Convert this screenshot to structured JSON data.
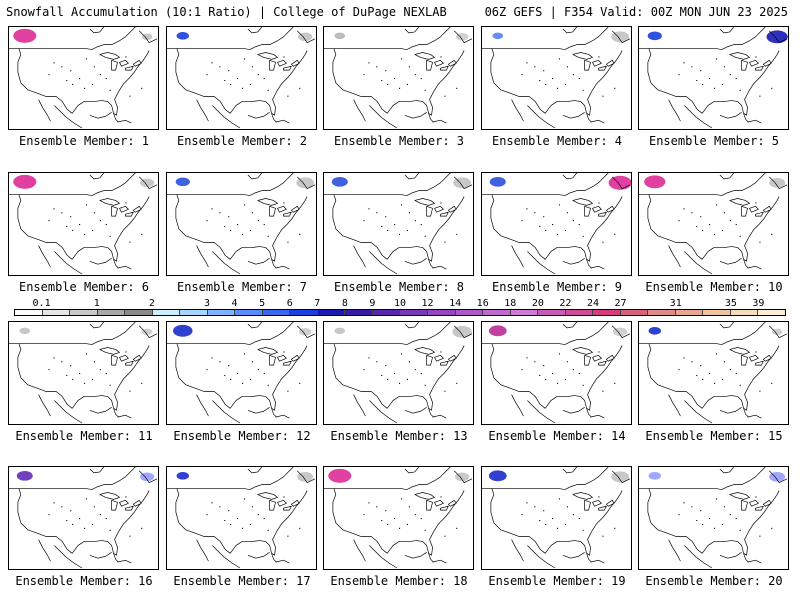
{
  "header": {
    "left": "Snowfall Accumulation (10:1 Ratio) | College of DuPage NEXLAB",
    "right": "06Z GEFS | F354 Valid: 00Z MON JUN 23 2025"
  },
  "panels": [
    {
      "caption": "Ensemble Member: 1",
      "snow": [
        {
          "region": "nw",
          "colors": [
            "#e040a0",
            "#6050d0",
            "#9fa7ff"
          ],
          "intensity": 1.0
        },
        {
          "region": "ne",
          "colors": [
            "#c8c8c8"
          ],
          "intensity": 0.3
        }
      ]
    },
    {
      "caption": "Ensemble Member: 2",
      "snow": [
        {
          "region": "nw",
          "colors": [
            "#3050e0",
            "#9fb0ff"
          ],
          "intensity": 0.4
        },
        {
          "region": "ne",
          "colors": [
            "#c8c8c8"
          ],
          "intensity": 0.5
        }
      ]
    },
    {
      "caption": "Ensemble Member: 3",
      "snow": [
        {
          "region": "nw",
          "colors": [
            "#bcbcbc"
          ],
          "intensity": 0.3
        },
        {
          "region": "ne",
          "colors": [
            "#d0d0d0"
          ],
          "intensity": 0.4
        }
      ]
    },
    {
      "caption": "Ensemble Member: 4",
      "snow": [
        {
          "region": "nw",
          "colors": [
            "#6a8bff"
          ],
          "intensity": 0.3
        },
        {
          "region": "ne",
          "colors": [
            "#c8c8c8"
          ],
          "intensity": 0.7
        }
      ]
    },
    {
      "caption": "Ensemble Member: 5",
      "snow": [
        {
          "region": "nw",
          "colors": [
            "#3050e0",
            "#c8c8c8"
          ],
          "intensity": 0.5
        },
        {
          "region": "ne",
          "colors": [
            "#3030c0",
            "#9fa7ff",
            "#c8c8c8"
          ],
          "intensity": 0.9
        }
      ]
    },
    {
      "caption": "Ensemble Member: 6",
      "snow": [
        {
          "region": "nw",
          "colors": [
            "#e040a0",
            "#6050d0",
            "#9fa7ff"
          ],
          "intensity": 1.0
        },
        {
          "region": "ne",
          "colors": [
            "#c8c8c8"
          ],
          "intensity": 0.5
        }
      ]
    },
    {
      "caption": "Ensemble Member: 7",
      "snow": [
        {
          "region": "nw",
          "colors": [
            "#4060e0",
            "#b0b0b0"
          ],
          "intensity": 0.5
        },
        {
          "region": "ne",
          "colors": [
            "#c8c8c8"
          ],
          "intensity": 0.7
        }
      ]
    },
    {
      "caption": "Ensemble Member: 8",
      "snow": [
        {
          "region": "nw",
          "colors": [
            "#4060e0",
            "#c8c8c8"
          ],
          "intensity": 0.6
        },
        {
          "region": "ne",
          "colors": [
            "#c8c8c8"
          ],
          "intensity": 0.7
        }
      ]
    },
    {
      "caption": "Ensemble Member: 9",
      "snow": [
        {
          "region": "nw",
          "colors": [
            "#4060e0",
            "#c8c8c8"
          ],
          "intensity": 0.6
        },
        {
          "region": "ne",
          "colors": [
            "#e040a0",
            "#6050d0",
            "#9fa7ff",
            "#c8c8c8"
          ],
          "intensity": 1.0
        }
      ]
    },
    {
      "caption": "Ensemble Member: 10",
      "snow": [
        {
          "region": "nw",
          "colors": [
            "#e040a0",
            "#6050d0",
            "#9fa7ff"
          ],
          "intensity": 0.9
        },
        {
          "region": "ne",
          "colors": [
            "#c8c8c8"
          ],
          "intensity": 0.6
        }
      ]
    },
    {
      "caption": "Ensemble Member: 11",
      "snow": [
        {
          "region": "nw",
          "colors": [
            "#c8c8c8"
          ],
          "intensity": 0.3
        },
        {
          "region": "ne",
          "colors": [
            "#d0d0d0"
          ],
          "intensity": 0.3
        }
      ]
    },
    {
      "caption": "Ensemble Member: 12",
      "snow": [
        {
          "region": "nw",
          "colors": [
            "#3040d0",
            "#9fa7ff"
          ],
          "intensity": 0.8
        },
        {
          "region": "ne",
          "colors": [
            "#d0d0d0"
          ],
          "intensity": 0.4
        }
      ]
    },
    {
      "caption": "Ensemble Member: 13",
      "snow": [
        {
          "region": "nw",
          "colors": [
            "#c8c8c8"
          ],
          "intensity": 0.3
        },
        {
          "region": "ne",
          "colors": [
            "#c8c8c8"
          ],
          "intensity": 0.8
        }
      ]
    },
    {
      "caption": "Ensemble Member: 14",
      "snow": [
        {
          "region": "nw",
          "colors": [
            "#c040a0",
            "#6050d0"
          ],
          "intensity": 0.7
        },
        {
          "region": "ne",
          "colors": [
            "#d0d0d0"
          ],
          "intensity": 0.5
        }
      ]
    },
    {
      "caption": "Ensemble Member: 15",
      "snow": [
        {
          "region": "nw",
          "colors": [
            "#3040d0",
            "#9fa7ff"
          ],
          "intensity": 0.4
        },
        {
          "region": "ne",
          "colors": [
            "#d0d0d0"
          ],
          "intensity": 0.3
        }
      ]
    },
    {
      "caption": "Ensemble Member: 16",
      "snow": [
        {
          "region": "nw",
          "colors": [
            "#7040c0",
            "#9fa7ff"
          ],
          "intensity": 0.6
        },
        {
          "region": "ne",
          "colors": [
            "#9fa7ff",
            "#c8c8c8"
          ],
          "intensity": 0.5
        }
      ]
    },
    {
      "caption": "Ensemble Member: 17",
      "snow": [
        {
          "region": "nw",
          "colors": [
            "#3040d0",
            "#9fa7ff"
          ],
          "intensity": 0.4
        },
        {
          "region": "ne",
          "colors": [
            "#c8c8c8"
          ],
          "intensity": 0.6
        }
      ]
    },
    {
      "caption": "Ensemble Member: 18",
      "snow": [
        {
          "region": "nw",
          "colors": [
            "#e040a0",
            "#6050d0",
            "#9fa7ff"
          ],
          "intensity": 1.0
        },
        {
          "region": "ne",
          "colors": [
            "#c8c8c8"
          ],
          "intensity": 0.5
        }
      ]
    },
    {
      "caption": "Ensemble Member: 19",
      "snow": [
        {
          "region": "nw",
          "colors": [
            "#3040d0",
            "#9fa7ff",
            "#c8c8c8"
          ],
          "intensity": 0.7
        },
        {
          "region": "ne",
          "colors": [
            "#c8c8c8"
          ],
          "intensity": 0.7
        }
      ]
    },
    {
      "caption": "Ensemble Member: 20",
      "snow": [
        {
          "region": "nw",
          "colors": [
            "#9fa7ff",
            "#c8c8c8"
          ],
          "intensity": 0.4
        },
        {
          "region": "ne",
          "colors": [
            "#9fa7ff",
            "#c8c8c8"
          ],
          "intensity": 0.6
        }
      ]
    }
  ],
  "colorbar": {
    "labels": [
      "0.1",
      "1",
      "2",
      "3",
      "4",
      "5",
      "6",
      "7",
      "8",
      "9",
      "10",
      "12",
      "14",
      "16",
      "18",
      "20",
      "22",
      "24",
      "27",
      "31",
      "35",
      "39"
    ],
    "colors": [
      "#fdfdfd",
      "#e6e6e6",
      "#c8c8c8",
      "#a8a8a8",
      "#8a8a8a",
      "#cceeff",
      "#a6d6ff",
      "#7fb2ff",
      "#5a8cff",
      "#3a66f0",
      "#1d3fe0",
      "#1a1ab0",
      "#3a1aa8",
      "#5a26b0",
      "#7a36b8",
      "#9446c0",
      "#ad58c8",
      "#c06ad0",
      "#d07ad8",
      "#c85ab8",
      "#d04a9a",
      "#d83a80",
      "#d8607a",
      "#e08a8a",
      "#e8a890",
      "#f0c4a0",
      "#f6dcb8",
      "#fbeed4"
    ]
  }
}
